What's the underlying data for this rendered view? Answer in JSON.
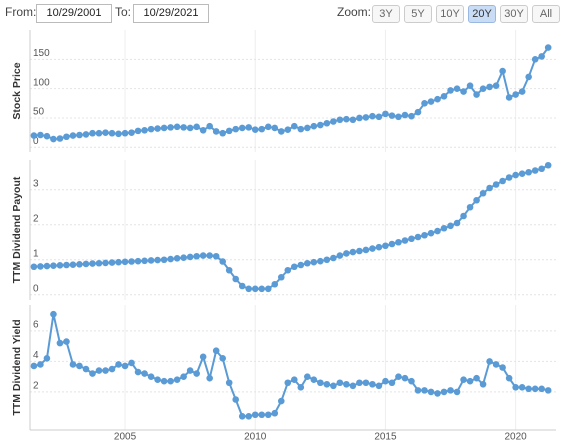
{
  "controls": {
    "from_label": "From:",
    "from_date": "10/29/2001",
    "to_label": "To:",
    "to_date": "10/29/2021",
    "zoom_label": "Zoom:",
    "zoom_buttons": [
      "3Y",
      "5Y",
      "10Y",
      "20Y",
      "30Y",
      "All"
    ],
    "active_zoom": 3
  },
  "chart_data": [
    {
      "type": "line",
      "ylabel": "Stock Price",
      "color": "#5b9bd5",
      "grid": true,
      "xlim": [
        2001.35,
        2021.55
      ],
      "ylim": [
        -8,
        200
      ],
      "yticks": [
        0,
        50,
        100,
        150
      ],
      "x": [
        2001.5,
        2001.75,
        2002,
        2002.25,
        2002.5,
        2002.75,
        2003,
        2003.25,
        2003.5,
        2003.75,
        2004,
        2004.25,
        2004.5,
        2004.75,
        2005,
        2005.25,
        2005.5,
        2005.75,
        2006,
        2006.25,
        2006.5,
        2006.75,
        2007,
        2007.25,
        2007.5,
        2007.75,
        2008,
        2008.25,
        2008.5,
        2008.75,
        2009,
        2009.25,
        2009.5,
        2009.75,
        2010,
        2010.25,
        2010.5,
        2010.75,
        2011,
        2011.25,
        2011.5,
        2011.75,
        2012,
        2012.25,
        2012.5,
        2012.75,
        2013,
        2013.25,
        2013.5,
        2013.75,
        2014,
        2014.25,
        2014.5,
        2014.75,
        2015,
        2015.25,
        2015.5,
        2015.75,
        2016,
        2016.25,
        2016.5,
        2016.75,
        2017,
        2017.25,
        2017.5,
        2017.75,
        2018,
        2018.25,
        2018.5,
        2018.75,
        2019,
        2019.25,
        2019.5,
        2019.75,
        2020,
        2020.25,
        2020.5,
        2020.75,
        2021,
        2021.25
      ],
      "values": [
        20,
        21,
        19,
        14,
        15,
        18,
        20,
        21,
        22,
        24,
        24,
        25,
        24,
        23,
        24,
        25,
        28,
        29,
        31,
        32,
        33,
        34,
        35,
        34,
        33,
        35,
        29,
        36,
        27,
        24,
        28,
        31,
        33,
        34,
        30,
        31,
        35,
        33,
        27,
        30,
        36,
        31,
        33,
        36,
        38,
        41,
        44,
        47,
        48,
        47,
        50,
        51,
        53,
        52,
        57,
        54,
        52,
        55,
        53,
        60,
        75,
        78,
        82,
        87,
        97,
        100,
        95,
        105,
        90,
        100,
        103,
        105,
        130,
        85,
        90,
        95,
        120,
        150,
        155,
        170
      ]
    },
    {
      "type": "line",
      "ylabel": "TTM Dividend Payout",
      "color": "#5b9bd5",
      "grid": true,
      "xlim": [
        2001.35,
        2021.55
      ],
      "ylim": [
        -0.15,
        3.85
      ],
      "yticks": [
        0,
        1,
        2,
        3
      ],
      "x": [
        2001.5,
        2001.75,
        2002,
        2002.25,
        2002.5,
        2002.75,
        2003,
        2003.25,
        2003.5,
        2003.75,
        2004,
        2004.25,
        2004.5,
        2004.75,
        2005,
        2005.25,
        2005.5,
        2005.75,
        2006,
        2006.25,
        2006.5,
        2006.75,
        2007,
        2007.25,
        2007.5,
        2007.75,
        2008,
        2008.25,
        2008.5,
        2008.75,
        2009,
        2009.25,
        2009.5,
        2009.75,
        2010,
        2010.25,
        2010.5,
        2010.75,
        2011,
        2011.25,
        2011.5,
        2011.75,
        2012,
        2012.25,
        2012.5,
        2012.75,
        2013,
        2013.25,
        2013.5,
        2013.75,
        2014,
        2014.25,
        2014.5,
        2014.75,
        2015,
        2015.25,
        2015.5,
        2015.75,
        2016,
        2016.25,
        2016.5,
        2016.75,
        2017,
        2017.25,
        2017.5,
        2017.75,
        2018,
        2018.25,
        2018.5,
        2018.75,
        2019,
        2019.25,
        2019.5,
        2019.75,
        2020,
        2020.25,
        2020.5,
        2020.75,
        2021,
        2021.25
      ],
      "values": [
        0.8,
        0.81,
        0.82,
        0.83,
        0.84,
        0.85,
        0.86,
        0.87,
        0.88,
        0.89,
        0.9,
        0.91,
        0.92,
        0.93,
        0.94,
        0.95,
        0.96,
        0.97,
        0.98,
        0.99,
        1.0,
        1.02,
        1.04,
        1.06,
        1.08,
        1.1,
        1.12,
        1.12,
        1.1,
        0.95,
        0.7,
        0.45,
        0.25,
        0.17,
        0.17,
        0.17,
        0.17,
        0.3,
        0.5,
        0.7,
        0.8,
        0.85,
        0.9,
        0.93,
        0.96,
        1.0,
        1.05,
        1.12,
        1.18,
        1.22,
        1.25,
        1.28,
        1.32,
        1.36,
        1.4,
        1.45,
        1.5,
        1.55,
        1.6,
        1.65,
        1.7,
        1.76,
        1.82,
        1.9,
        1.97,
        2.05,
        2.25,
        2.5,
        2.7,
        2.9,
        3.05,
        3.15,
        3.25,
        3.35,
        3.42,
        3.46,
        3.5,
        3.55,
        3.6,
        3.7
      ]
    },
    {
      "type": "line",
      "ylabel": "TTM Dividend Yield",
      "color": "#5b9bd5",
      "grid": true,
      "xlim": [
        2001.35,
        2021.55
      ],
      "ylim": [
        -0.5,
        7.7
      ],
      "yticks": [
        2,
        4,
        6
      ],
      "xticks": [
        2005,
        2010,
        2015,
        2020
      ],
      "x": [
        2001.5,
        2001.75,
        2002,
        2002.25,
        2002.5,
        2002.75,
        2003,
        2003.25,
        2003.5,
        2003.75,
        2004,
        2004.25,
        2004.5,
        2004.75,
        2005,
        2005.25,
        2005.5,
        2005.75,
        2006,
        2006.25,
        2006.5,
        2006.75,
        2007,
        2007.25,
        2007.5,
        2007.75,
        2008,
        2008.25,
        2008.5,
        2008.75,
        2009,
        2009.25,
        2009.5,
        2009.75,
        2010,
        2010.25,
        2010.5,
        2010.75,
        2011,
        2011.25,
        2011.5,
        2011.75,
        2012,
        2012.25,
        2012.5,
        2012.75,
        2013,
        2013.25,
        2013.5,
        2013.75,
        2014,
        2014.25,
        2014.5,
        2014.75,
        2015,
        2015.25,
        2015.5,
        2015.75,
        2016,
        2016.25,
        2016.5,
        2016.75,
        2017,
        2017.25,
        2017.5,
        2017.75,
        2018,
        2018.25,
        2018.5,
        2018.75,
        2019,
        2019.25,
        2019.5,
        2019.75,
        2020,
        2020.25,
        2020.5,
        2020.75,
        2021,
        2021.25
      ],
      "values": [
        3.7,
        3.8,
        4.2,
        7.1,
        5.2,
        5.3,
        3.8,
        3.7,
        3.5,
        3.2,
        3.4,
        3.4,
        3.5,
        3.8,
        3.7,
        3.9,
        3.3,
        3.2,
        3.0,
        2.8,
        2.7,
        2.7,
        2.8,
        3.0,
        3.4,
        3.2,
        4.3,
        2.9,
        4.7,
        4.2,
        2.6,
        1.5,
        0.4,
        0.4,
        0.5,
        0.5,
        0.5,
        0.6,
        1.4,
        2.6,
        2.8,
        2.3,
        3.0,
        2.8,
        2.6,
        2.5,
        2.4,
        2.6,
        2.5,
        2.4,
        2.6,
        2.6,
        2.5,
        2.4,
        2.7,
        2.6,
        3.0,
        2.9,
        2.7,
        2.1,
        2.1,
        2.0,
        1.9,
        2.0,
        2.1,
        2.0,
        2.8,
        2.7,
        2.9,
        2.5,
        4.0,
        3.8,
        3.6,
        2.9,
        2.3,
        2.3,
        2.2,
        2.2,
        2.2,
        2.1
      ]
    }
  ]
}
